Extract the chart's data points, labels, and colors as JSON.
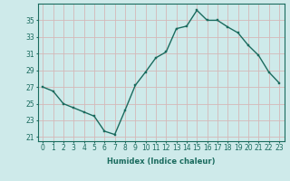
{
  "x": [
    0,
    1,
    2,
    3,
    4,
    5,
    6,
    7,
    8,
    9,
    10,
    11,
    12,
    13,
    14,
    15,
    16,
    17,
    18,
    19,
    20,
    21,
    22,
    23
  ],
  "y": [
    27,
    26.5,
    25,
    24.5,
    24,
    23.5,
    21.7,
    21.3,
    24.2,
    27.2,
    28.8,
    30.5,
    31.2,
    34.0,
    34.3,
    36.2,
    35.0,
    35.0,
    34.2,
    33.5,
    32.0,
    30.8,
    28.8,
    27.5
  ],
  "line_color": "#1a6b5e",
  "marker_color": "#1a6b5e",
  "bg_color": "#ceeaea",
  "grid_color_major": "#b8d4d4",
  "grid_color_minor": "#d8ecec",
  "xlabel": "Humidex (Indice chaleur)",
  "ylim": [
    20.5,
    37.0
  ],
  "xlim": [
    -0.5,
    23.5
  ],
  "yticks": [
    21,
    23,
    25,
    27,
    29,
    31,
    33,
    35
  ],
  "xticks": [
    0,
    1,
    2,
    3,
    4,
    5,
    6,
    7,
    8,
    9,
    10,
    11,
    12,
    13,
    14,
    15,
    16,
    17,
    18,
    19,
    20,
    21,
    22,
    23
  ],
  "xlabel_fontsize": 6.0,
  "tick_fontsize": 5.5,
  "line_width": 1.0,
  "marker_size": 2.0
}
